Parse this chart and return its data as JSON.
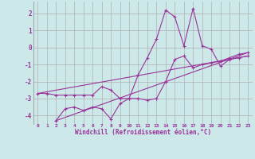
{
  "background_color": "#cce8e8",
  "grid_color": "#b0b0b0",
  "line_color": "#993399",
  "xlabel": "Windchill (Refroidissement éolien,°C)",
  "xlabel_color": "#993399",
  "tick_color": "#993399",
  "xlim": [
    -0.5,
    23.5
  ],
  "ylim": [
    -4.5,
    2.7
  ],
  "yticks": [
    -4,
    -3,
    -2,
    -1,
    0,
    1,
    2
  ],
  "xticks": [
    0,
    1,
    2,
    3,
    4,
    5,
    6,
    7,
    8,
    9,
    10,
    11,
    12,
    13,
    14,
    15,
    16,
    17,
    18,
    19,
    20,
    21,
    22,
    23
  ],
  "series1_x": [
    0,
    1,
    2,
    3,
    4,
    5,
    6,
    7,
    8,
    9,
    10,
    11,
    12,
    13,
    14,
    15,
    16,
    17,
    18,
    19,
    20,
    21,
    22,
    23
  ],
  "series1_y": [
    -2.7,
    -2.7,
    -2.8,
    -2.8,
    -2.8,
    -2.8,
    -2.8,
    -2.3,
    -2.5,
    -3.0,
    -3.0,
    -1.6,
    -0.6,
    0.5,
    2.2,
    1.8,
    0.1,
    2.3,
    0.1,
    -0.1,
    -1.1,
    -0.7,
    -0.6,
    -0.5
  ],
  "series2_x": [
    2,
    3,
    4,
    5,
    6,
    7,
    8,
    9,
    10,
    11,
    12,
    13,
    14,
    15,
    16,
    17,
    18,
    19,
    20,
    21,
    22,
    23
  ],
  "series2_y": [
    -4.3,
    -3.6,
    -3.5,
    -3.7,
    -3.5,
    -3.6,
    -4.2,
    -3.3,
    -3.0,
    -3.0,
    -3.1,
    -3.0,
    -2.0,
    -0.7,
    -0.5,
    -1.2,
    -1.0,
    -0.9,
    -0.8,
    -0.6,
    -0.4,
    -0.3
  ],
  "series3_x": [
    0,
    23
  ],
  "series3_y": [
    -2.7,
    -0.5
  ],
  "series4_x": [
    2,
    23
  ],
  "series4_y": [
    -4.3,
    -0.3
  ]
}
